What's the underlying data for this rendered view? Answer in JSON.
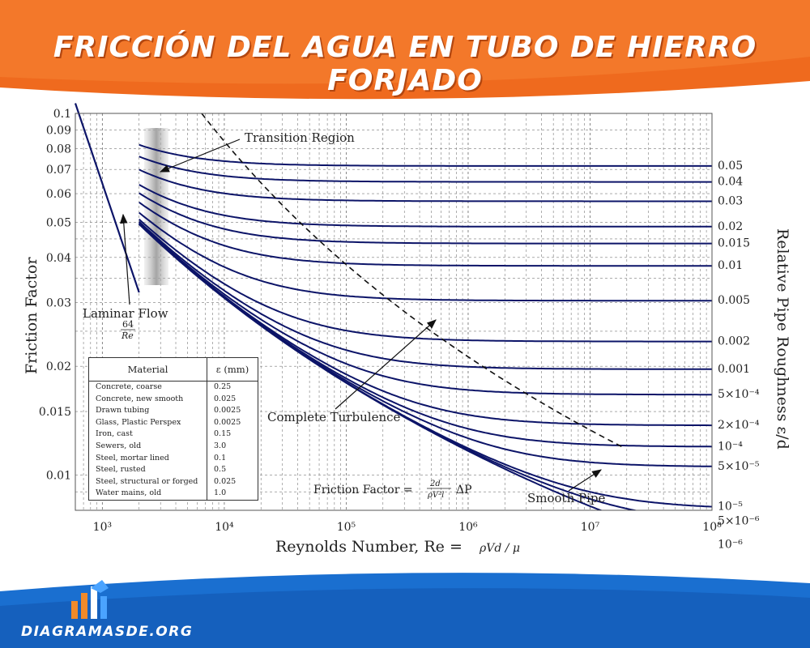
{
  "title": "FRICCIÓN DEL AGUA EN TUBO DE HIERRO FORJADO",
  "brand": "DIAGRAMASDE.ORG",
  "colors": {
    "orange": "#ef6a1e",
    "blue": "#1a6fd0",
    "curve": "#0c1468",
    "text": "#222222"
  },
  "chart_data": {
    "type": "line",
    "xlabel": "Reynolds Number, Re =",
    "xlabel_formula": "ρVd / μ",
    "ylabel": "Friction Factor",
    "right_label": "Relative Pipe Roughness ε/d",
    "xscale": "log",
    "yscale": "log",
    "xlim": [
      600,
      100000000
    ],
    "ylim": [
      0.008,
      0.1
    ],
    "grid": true,
    "x_ticks": [
      {
        "value": 1000,
        "label": "10³"
      },
      {
        "value": 10000,
        "label": "10⁴"
      },
      {
        "value": 100000,
        "label": "10⁵"
      },
      {
        "value": 1000000,
        "label": "10⁶"
      },
      {
        "value": 10000000,
        "label": "10⁷"
      },
      {
        "value": 100000000,
        "label": "10⁸"
      }
    ],
    "y_ticks": [
      {
        "value": 0.1,
        "label": "0.1"
      },
      {
        "value": 0.09,
        "label": "0.09"
      },
      {
        "value": 0.08,
        "label": "0.08"
      },
      {
        "value": 0.07,
        "label": "0.07"
      },
      {
        "value": 0.06,
        "label": "0.06"
      },
      {
        "value": 0.05,
        "label": "0.05"
      },
      {
        "value": 0.04,
        "label": "0.04"
      },
      {
        "value": 0.03,
        "label": "0.03"
      },
      {
        "value": 0.02,
        "label": "0.02"
      },
      {
        "value": 0.015,
        "label": "0.015"
      },
      {
        "value": 0.01,
        "label": "0.01"
      }
    ],
    "roughness": [
      {
        "value": 0.05,
        "label": "0.05"
      },
      {
        "value": 0.04,
        "label": "0.04"
      },
      {
        "value": 0.03,
        "label": "0.03"
      },
      {
        "value": 0.02,
        "label": "0.02"
      },
      {
        "value": 0.015,
        "label": "0.015"
      },
      {
        "value": 0.01,
        "label": "0.01"
      },
      {
        "value": 0.005,
        "label": "0.005"
      },
      {
        "value": 0.002,
        "label": "0.002"
      },
      {
        "value": 0.001,
        "label": "0.001"
      },
      {
        "value": 0.0005,
        "label": "5×10⁻⁴"
      },
      {
        "value": 0.0002,
        "label": "2×10⁻⁴"
      },
      {
        "value": 0.0001,
        "label": "10⁻⁴"
      },
      {
        "value": 5e-05,
        "label": "5×10⁻⁵"
      },
      {
        "value": 1e-05,
        "label": "10⁻⁵"
      },
      {
        "value": 5e-06,
        "label": "5×10⁻⁶"
      },
      {
        "value": 1e-06,
        "label": "10⁻⁶"
      }
    ],
    "laminar": {
      "x": [
        600,
        2000
      ],
      "label": "Laminar Flow",
      "formula_num": "64",
      "formula_den": "Re"
    },
    "transition_region": {
      "x": [
        2000,
        4000
      ],
      "label": "Transition Region"
    },
    "complete_turbulence_label": "Complete Turbulence",
    "smooth_pipe_label": "Smooth Pipe",
    "friction_formula": {
      "prefix": "Friction Factor =",
      "num": "2d",
      "den": "ρV²l",
      "suffix": "ΔP"
    },
    "materials_table": {
      "headers": [
        "Material",
        "ε (mm)"
      ],
      "rows": [
        [
          "Concrete, coarse",
          "0.25"
        ],
        [
          "Concrete, new smooth",
          "0.025"
        ],
        [
          "Drawn tubing",
          "0.0025"
        ],
        [
          "Glass, Plastic Perspex",
          "0.0025"
        ],
        [
          "Iron, cast",
          "0.15"
        ],
        [
          "Sewers, old",
          "3.0"
        ],
        [
          "Steel, mortar lined",
          "0.1"
        ],
        [
          "Steel, rusted",
          "0.5"
        ],
        [
          "Steel, structural or forged",
          "0.025"
        ],
        [
          "Water mains, old",
          "1.0"
        ]
      ]
    }
  }
}
